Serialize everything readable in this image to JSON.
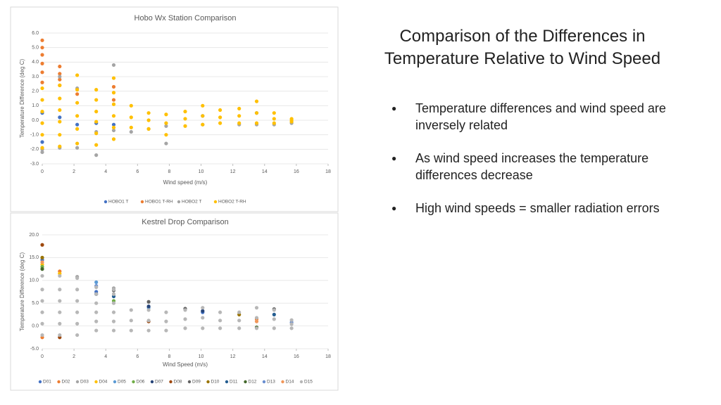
{
  "slide": {
    "title": "Comparison of the Differences in Temperature Relative to Wind Speed",
    "bullets": [
      "Temperature differences and wind speed are inversely related",
      "As wind speed increases the temperature differences decrease",
      "High wind speeds = smaller radiation errors"
    ]
  },
  "chart_data": [
    {
      "type": "scatter",
      "title": "Hobo Wx Station Comparison",
      "x_label": "Wind speed (m/s)",
      "y_label": "Temperature Difference (deg C)",
      "xlim": [
        0,
        18
      ],
      "xticks": [
        0,
        2,
        4,
        6,
        8,
        10,
        12,
        14,
        16,
        18
      ],
      "ylim": [
        -3,
        6
      ],
      "yticks": [
        {
          "value": -3,
          "label": "-3.0"
        },
        {
          "value": -2,
          "label": "-2.0"
        },
        {
          "value": -1,
          "label": "-1.0"
        },
        {
          "value": 0,
          "label": "0.0"
        },
        {
          "value": 1,
          "label": "1.0"
        },
        {
          "value": 2,
          "label": "2.0"
        },
        {
          "value": 3,
          "label": "3.0"
        },
        {
          "value": 4,
          "label": "4.0"
        },
        {
          "value": 5,
          "label": "5.0"
        },
        {
          "value": 6,
          "label": "6.0"
        }
      ],
      "grid": true,
      "legend": "bottom",
      "series": [
        {
          "name": "HOBO1 T",
          "color": "#4472c4",
          "x": [
            0,
            0,
            1.1,
            2.2,
            3.4,
            4.5,
            10.1,
            13.5
          ],
          "values": [
            0.5,
            -1.5,
            0.2,
            -0.3,
            -0.2,
            -0.3,
            0.3,
            0.5
          ]
        },
        {
          "name": "HOBO1 T-RH",
          "color": "#ed7d31",
          "x": [
            0,
            0,
            0,
            0,
            0,
            0,
            1.1,
            1.1,
            1.1,
            1.1,
            2.2,
            4.5,
            4.5
          ],
          "values": [
            5.5,
            5.0,
            4.5,
            3.9,
            3.3,
            2.6,
            3.7,
            3.2,
            2.8,
            2.4,
            1.8,
            1.4,
            2.3
          ]
        },
        {
          "name": "HOBO2 T",
          "color": "#a5a5a5",
          "x": [
            0,
            0,
            1.1,
            1.1,
            2.2,
            2.2,
            3.4,
            3.4,
            4.5,
            4.5,
            5.6,
            6.7,
            7.8,
            7.8,
            10.1,
            12.4,
            13.5,
            14.6,
            15.7
          ],
          "values": [
            -2.2,
            -2.0,
            -1.9,
            3.0,
            2.2,
            -1.9,
            -2.4,
            -0.8,
            3.8,
            -0.7,
            -0.8,
            -0.6,
            -1.6,
            -0.4,
            -0.3,
            -0.3,
            -0.3,
            -0.3,
            -0.2
          ]
        },
        {
          "name": "HOBO2 T-RH",
          "color": "#ffc000",
          "x": [
            0,
            0,
            0,
            0,
            0,
            0,
            1.1,
            1.1,
            1.1,
            1.1,
            1.1,
            1.1,
            2.2,
            2.2,
            2.2,
            2.2,
            2.2,
            2.2,
            3.4,
            3.4,
            3.4,
            3.4,
            3.4,
            3.4,
            4.5,
            4.5,
            4.5,
            4.5,
            4.5,
            4.5,
            5.6,
            5.6,
            5.6,
            6.7,
            6.7,
            6.7,
            7.8,
            7.8,
            7.8,
            9.0,
            9.0,
            9.0,
            10.1,
            10.1,
            10.1,
            11.2,
            11.2,
            11.2,
            12.4,
            12.4,
            12.4,
            13.5,
            13.5,
            13.5,
            14.6,
            14.6,
            14.6,
            15.7,
            15.7,
            15.7
          ],
          "values": [
            -1.9,
            -1.0,
            -0.2,
            0.6,
            1.4,
            2.2,
            -1.8,
            -1.0,
            -0.1,
            0.7,
            1.5,
            2.4,
            -1.6,
            -0.6,
            0.3,
            1.2,
            2.1,
            3.1,
            -1.7,
            -0.9,
            -0.1,
            0.6,
            1.4,
            2.1,
            -1.3,
            -0.5,
            0.3,
            1.1,
            1.9,
            2.9,
            -0.5,
            0.2,
            1.0,
            -0.6,
            0,
            0.5,
            -1.0,
            -0.2,
            0.4,
            -0.4,
            0.1,
            0.6,
            -0.3,
            0.3,
            1.0,
            -0.2,
            0.2,
            0.7,
            -0.2,
            0.3,
            0.8,
            -0.2,
            0.5,
            1.3,
            -0.2,
            0.1,
            0.5,
            -0.1,
            0,
            0.1
          ]
        }
      ]
    },
    {
      "type": "scatter",
      "title": "Kestrel Drop Comparison",
      "x_label": "Wind Speed (m/s)",
      "y_label": "Temperature Difference (deg C)",
      "xlim": [
        0,
        18
      ],
      "xticks": [
        0,
        2,
        4,
        6,
        8,
        10,
        12,
        14,
        16,
        18
      ],
      "ylim": [
        -5,
        20
      ],
      "yticks": [
        {
          "value": -5,
          "label": "-5.0"
        },
        {
          "value": 0,
          "label": "0.0"
        },
        {
          "value": 5,
          "label": "5.0"
        },
        {
          "value": 10,
          "label": "10.0"
        },
        {
          "value": 15,
          "label": "15.0"
        },
        {
          "value": 20,
          "label": "20.0"
        }
      ],
      "grid": true,
      "legend": "bottom",
      "series": [
        {
          "name": "D01",
          "color": "#4472c4",
          "x": [
            0,
            3.4,
            10.1
          ],
          "values": [
            14.5,
            7.5,
            3.0
          ]
        },
        {
          "name": "D02",
          "color": "#ed7d31",
          "x": [
            0,
            1.1,
            13.5
          ],
          "values": [
            -2.5,
            12.0,
            1.5
          ]
        },
        {
          "name": "D03",
          "color": "#a5a5a5",
          "x": [
            2.2,
            4.5
          ],
          "values": [
            10.8,
            8.3
          ]
        },
        {
          "name": "D04",
          "color": "#ffc000",
          "x": [
            0,
            1.1
          ],
          "values": [
            13.5,
            11.5
          ]
        },
        {
          "name": "D05",
          "color": "#5b9bd5",
          "x": [
            3.4,
            6.7
          ],
          "values": [
            9.6,
            4.0
          ]
        },
        {
          "name": "D06",
          "color": "#70ad47",
          "x": [
            0,
            4.5
          ],
          "values": [
            13.0,
            5.5
          ]
        },
        {
          "name": "D07",
          "color": "#264478",
          "x": [
            3.4,
            6.7,
            10.1
          ],
          "values": [
            7.0,
            4.3,
            3.3
          ]
        },
        {
          "name": "D08",
          "color": "#9e480e",
          "x": [
            0,
            1.1,
            6.7
          ],
          "values": [
            17.8,
            -2.5,
            1.0
          ]
        },
        {
          "name": "D09",
          "color": "#636363",
          "x": [
            4.5,
            6.7,
            14.6,
            9.0
          ],
          "values": [
            7.8,
            5.3,
            3.7,
            3.8
          ]
        },
        {
          "name": "D10",
          "color": "#997300",
          "x": [
            0,
            12.4
          ],
          "values": [
            15.0,
            2.5
          ]
        },
        {
          "name": "D11",
          "color": "#255e91",
          "x": [
            4.5,
            14.6
          ],
          "values": [
            6.5,
            2.5
          ]
        },
        {
          "name": "D12",
          "color": "#43682b",
          "x": [
            0,
            13.5
          ],
          "values": [
            12.5,
            -0.3
          ]
        },
        {
          "name": "D13",
          "color": "#698ed0",
          "x": [
            3.4,
            15.7
          ],
          "values": [
            8.8,
            0.8
          ]
        },
        {
          "name": "D14",
          "color": "#f1975a",
          "x": [
            0,
            13.5
          ],
          "values": [
            14.0,
            1.0
          ]
        },
        {
          "name": "D15",
          "color": "#b7b7b7",
          "x": [
            0,
            0,
            0,
            0,
            0,
            0,
            1.1,
            1.1,
            1.1,
            1.1,
            1.1,
            1.1,
            2.2,
            2.2,
            2.2,
            2.2,
            2.2,
            2.2,
            3.4,
            3.4,
            3.4,
            3.4,
            3.4,
            3.4,
            4.5,
            4.5,
            4.5,
            4.5,
            4.5,
            4.5,
            5.6,
            5.6,
            5.6,
            6.7,
            6.7,
            6.7,
            7.8,
            7.8,
            7.8,
            9.0,
            9.0,
            9.0,
            10.1,
            10.1,
            10.1,
            11.2,
            11.2,
            11.2,
            12.4,
            12.4,
            12.4,
            13.5,
            13.5,
            13.5,
            14.6,
            14.6,
            14.6,
            15.7,
            15.7,
            15.7
          ],
          "values": [
            -2.0,
            0.5,
            3.0,
            5.5,
            8.0,
            11.0,
            -2.0,
            0.5,
            3.0,
            5.5,
            8.0,
            11.0,
            -2.0,
            0.5,
            3.0,
            5.5,
            8.0,
            10.5,
            -1.0,
            1.0,
            3.0,
            5.0,
            7.0,
            8.5,
            -1.0,
            1.0,
            3.0,
            5.0,
            7.0,
            8.0,
            -1,
            1.2,
            3.5,
            -1,
            1.2,
            3.5,
            -1,
            1,
            3,
            -0.5,
            1.5,
            3.5,
            -0.5,
            1.8,
            4,
            -0.5,
            1.2,
            3,
            -0.5,
            1.2,
            3,
            -0.5,
            1.8,
            4,
            -0.5,
            1.5,
            3.5,
            -0.5,
            0.4,
            1.3
          ]
        }
      ]
    }
  ]
}
